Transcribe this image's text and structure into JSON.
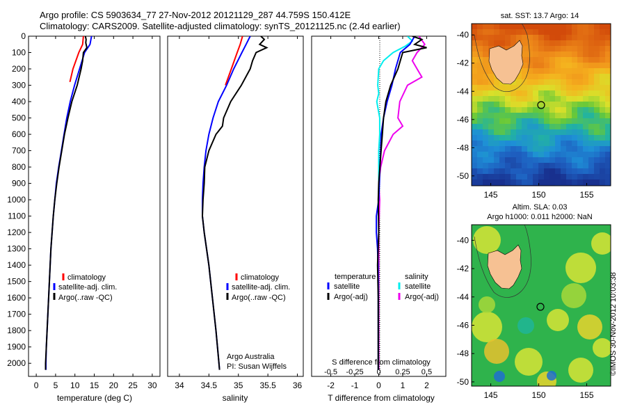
{
  "header": {
    "line1": "Argo profile: CS 5903634_77 27-Nov-2012 20121129_287 44.759S 150.412E",
    "line2": "Climatology: CARS2009. Satellite-adjusted climatology: synTS_20121125.nc (2.4d earlier)"
  },
  "colors": {
    "climatology": "#ff0000",
    "satellite": "#0000ff",
    "argo": "#000000",
    "salinity_satellite": "#00eeee",
    "salinity_argo": "#ee00ee"
  },
  "chart_data": [
    {
      "type": "line",
      "panel": "temperature",
      "xlabel": "temperature (deg C)",
      "ylabel": "",
      "xlim": [
        -2,
        32
      ],
      "ylim": [
        2080,
        0
      ],
      "xticks": [
        0,
        5,
        10,
        15,
        20,
        25,
        30
      ],
      "yticks": [
        0,
        100,
        200,
        300,
        400,
        500,
        600,
        700,
        800,
        900,
        1000,
        1100,
        1200,
        1300,
        1400,
        1500,
        1600,
        1700,
        1800,
        1900,
        2000
      ],
      "legend": [
        "climatology",
        "satellite-adj. clim.",
        "Argo(..raw -QC)"
      ],
      "legend_position": "lower-center",
      "series": [
        {
          "name": "climatology",
          "depth": [
            0,
            50,
            100,
            200,
            280
          ],
          "values": [
            12.2,
            12.0,
            11.0,
            9.5,
            8.7
          ]
        },
        {
          "name": "satellite-adj. clim.",
          "depth": [
            0,
            50,
            100,
            200,
            300,
            400,
            500,
            600,
            700,
            800,
            900,
            1000,
            1100,
            1200,
            1300,
            1400,
            1500,
            1600,
            1700,
            1800,
            1900,
            2000,
            2040
          ],
          "values": [
            14.3,
            13.9,
            12.5,
            11.2,
            9.9,
            8.8,
            7.9,
            7.2,
            6.5,
            5.8,
            5.2,
            4.8,
            4.4,
            4.1,
            3.8,
            3.6,
            3.4,
            3.2,
            3.0,
            2.8,
            2.6,
            2.5,
            2.5
          ]
        },
        {
          "name": "Argo(..raw -QC)",
          "depth": [
            0,
            20,
            40,
            70,
            100,
            150,
            200,
            300,
            400,
            500,
            600,
            700,
            800,
            900,
            1000,
            1100,
            1200,
            1300,
            1400,
            1500,
            1600,
            1700,
            1800,
            1900,
            2000,
            2040
          ],
          "values": [
            12.7,
            12.9,
            12.8,
            13.1,
            12.2,
            12.0,
            11.6,
            10.6,
            9.2,
            8.2,
            7.3,
            6.6,
            5.9,
            5.3,
            4.8,
            4.4,
            4.1,
            3.8,
            3.6,
            3.4,
            3.2,
            3.0,
            2.8,
            2.6,
            2.4,
            2.4
          ]
        }
      ]
    },
    {
      "type": "line",
      "panel": "salinity",
      "xlabel": "salinity",
      "ylabel": "",
      "xlim": [
        33.8,
        36.1
      ],
      "ylim": [
        2080,
        0
      ],
      "xticks": [
        34,
        34.5,
        35,
        35.5,
        36
      ],
      "legend": [
        "climatology",
        "satellite-adj. clim.",
        "Argo(..raw -QC)"
      ],
      "legend_position": "lower-center",
      "annotation": [
        "Argo Australia",
        "PI: Susan Wijffels"
      ],
      "series": [
        {
          "name": "climatology",
          "depth": [
            0,
            50,
            100,
            200,
            300
          ],
          "values": [
            35.07,
            35.03,
            34.98,
            34.88,
            34.78
          ]
        },
        {
          "name": "satellite-adj. clim.",
          "depth": [
            0,
            50,
            100,
            200,
            300,
            400,
            500,
            600,
            700,
            800,
            900,
            1000,
            1100,
            1200,
            1400,
            1600,
            1800,
            2000,
            2040
          ],
          "values": [
            35.2,
            35.13,
            35.06,
            34.92,
            34.8,
            34.66,
            34.57,
            34.5,
            34.45,
            34.42,
            34.4,
            34.39,
            34.39,
            34.42,
            34.5,
            34.56,
            34.62,
            34.67,
            34.68
          ]
        },
        {
          "name": "Argo(..raw -QC)",
          "depth": [
            0,
            20,
            50,
            70,
            100,
            150,
            200,
            300,
            400,
            500,
            550,
            600,
            700,
            800,
            900,
            1000,
            1100,
            1200,
            1400,
            1600,
            1800,
            2000,
            2040
          ],
          "values": [
            35.38,
            35.44,
            35.36,
            35.48,
            35.3,
            35.24,
            35.2,
            35.05,
            34.87,
            34.75,
            34.73,
            34.62,
            34.5,
            34.43,
            34.42,
            34.4,
            34.39,
            34.42,
            34.5,
            34.56,
            34.62,
            34.67,
            34.68
          ]
        }
      ]
    },
    {
      "type": "line",
      "panel": "difference",
      "xlabel": "T difference from climatology",
      "xlabel_top": "S difference from climatology",
      "ylabel": "",
      "xlim": [
        -2.8,
        2.8
      ],
      "ylim": [
        2080,
        0
      ],
      "xticks": [
        -2,
        -1,
        0,
        1,
        2
      ],
      "xticks_s": [
        "-0.5",
        "-0.25",
        "0",
        "0.25",
        "0.5"
      ],
      "legend_titles": [
        "temperature",
        "salinity"
      ],
      "legend": [
        "satellite",
        "Argo(-adj)",
        "satellite",
        "Argo(-adj)"
      ],
      "series": [
        {
          "name": "satellite",
          "quantity": "temperature",
          "depth": [
            0,
            50,
            100,
            200,
            300,
            400,
            500,
            600,
            700,
            800,
            900,
            1000,
            1100,
            1200,
            1300,
            1400,
            1500,
            1600,
            1800,
            2000,
            2040
          ],
          "values": [
            1.5,
            1.3,
            0.9,
            0.7,
            0.55,
            0.35,
            0.2,
            0.1,
            0.08,
            0.05,
            0.03,
            0.0,
            -0.1,
            -0.1,
            -0.05,
            -0.03,
            -0.02,
            -0.02,
            -0.02,
            -0.02,
            -0.02
          ]
        },
        {
          "name": "Argo(-adj)",
          "quantity": "temperature",
          "depth": [
            0,
            20,
            50,
            70,
            100,
            150,
            200,
            300,
            400,
            500,
            600,
            700,
            800,
            900,
            1000,
            1200,
            1400,
            1600,
            1800,
            2000,
            2040
          ],
          "values": [
            1.4,
            1.8,
            1.5,
            2.0,
            1.0,
            0.9,
            0.8,
            0.5,
            0.3,
            0.2,
            0.15,
            0.1,
            0.05,
            0.0,
            -0.02,
            0.0,
            -0.05,
            -0.02,
            -0.02,
            -0.02,
            -0.02
          ]
        },
        {
          "name": "satellite",
          "quantity": "salinity",
          "depth": [
            0,
            30,
            60,
            100,
            150,
            200,
            300,
            350,
            400,
            500,
            600,
            700,
            800,
            900,
            1000,
            1200,
            1400,
            1600,
            1800,
            2000,
            2040
          ],
          "values": [
            0.3,
            0.35,
            0.28,
            0.15,
            0.05,
            0.0,
            -0.01,
            0.0,
            -0.02,
            0.01,
            0.01,
            0.0,
            0.0,
            0.0,
            0.0,
            0.0,
            0.0,
            0.0,
            0.0,
            0.0,
            0.0
          ]
        },
        {
          "name": "Argo(-adj)",
          "quantity": "salinity",
          "depth": [
            0,
            50,
            100,
            150,
            200,
            250,
            300,
            400,
            500,
            550,
            600,
            700,
            800,
            900,
            1000,
            1200,
            1400,
            1600,
            1800,
            2000,
            2040
          ],
          "values": [
            0.42,
            0.48,
            0.4,
            0.35,
            0.4,
            0.45,
            0.3,
            0.22,
            0.2,
            0.25,
            0.15,
            0.06,
            0.02,
            0.0,
            0.01,
            0.0,
            0.0,
            0.0,
            0.0,
            0.0,
            0.0
          ]
        }
      ]
    },
    {
      "type": "heatmap",
      "panel": "sst-map",
      "title": "sat. SST: 13.7 Argo: 14",
      "xlim": [
        143,
        157.5
      ],
      "ylim": [
        -50.7,
        -39.2
      ],
      "xticks": [
        145,
        150,
        155
      ],
      "yticks": [
        -40,
        -42,
        -44,
        -46,
        -48,
        -50
      ],
      "marker": {
        "lon": 150.412,
        "lat": -44.759
      }
    },
    {
      "type": "heatmap",
      "panel": "sla-map",
      "title_lines": [
        "Altim. SLA: 0.03",
        "Argo h1000: 0.011 h2000: NaN"
      ],
      "xlim": [
        143,
        157.5
      ],
      "ylim": [
        -50.3,
        -38.9
      ],
      "xticks": [
        145,
        150,
        155
      ],
      "yticks": [
        -40,
        -42,
        -44,
        -46,
        -48,
        -50
      ],
      "marker": {
        "lon": 150.412,
        "lat": -44.759
      }
    }
  ],
  "footer_stamp": "©IMOS 30-Nov-2012 10:03:38"
}
